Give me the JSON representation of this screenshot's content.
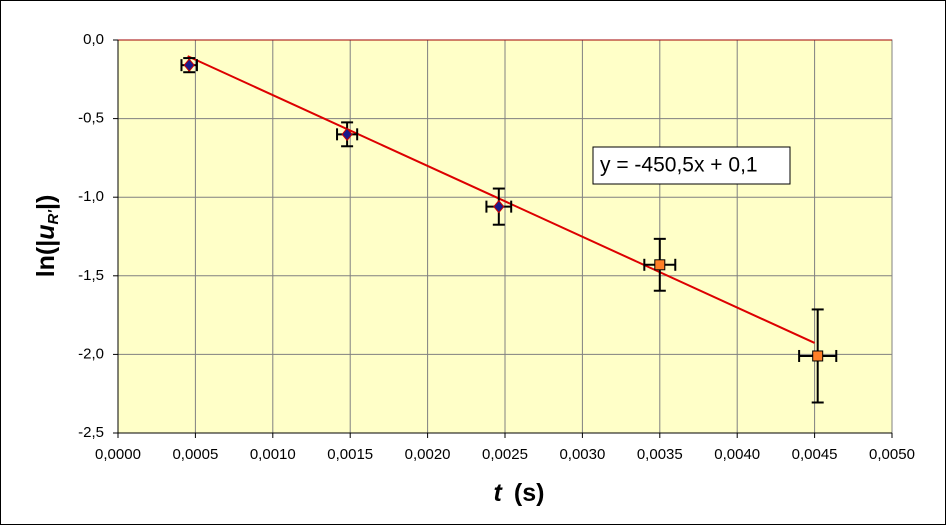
{
  "chart_data": {
    "type": "scatter",
    "xlabel_parts": [
      "t",
      "(s)"
    ],
    "ylabel_parts": [
      "ln(|",
      "u",
      "R'",
      "|)"
    ],
    "xlim": [
      0,
      0.005
    ],
    "ylim": [
      -2.5,
      0
    ],
    "xticks": [
      {
        "value": 0,
        "label": "0,0000"
      },
      {
        "value": 0.0005,
        "label": "0,0005"
      },
      {
        "value": 0.001,
        "label": "0,0010"
      },
      {
        "value": 0.0015,
        "label": "0,0015"
      },
      {
        "value": 0.002,
        "label": "0,0020"
      },
      {
        "value": 0.0025,
        "label": "0,0025"
      },
      {
        "value": 0.003,
        "label": "0,0030"
      },
      {
        "value": 0.0035,
        "label": "0,0035"
      },
      {
        "value": 0.004,
        "label": "0,0040"
      },
      {
        "value": 0.0045,
        "label": "0,0045"
      },
      {
        "value": 0.005,
        "label": "0,0050"
      }
    ],
    "yticks": [
      {
        "value": 0,
        "label": "0,0"
      },
      {
        "value": -0.5,
        "label": "-0,5"
      },
      {
        "value": -1,
        "label": "-1,0"
      },
      {
        "value": -1.5,
        "label": "-1,5"
      },
      {
        "value": -2,
        "label": "-2,0"
      },
      {
        "value": -2.5,
        "label": "-2,5"
      }
    ],
    "grid": true,
    "series": [
      {
        "color": "#1a1a8c",
        "marker": "diamond",
        "x": [
          0.00046,
          0.00148,
          0.00246
        ],
        "values": [
          -0.16,
          -0.6,
          -1.06
        ],
        "yerr": [
          0.045,
          0.076,
          0.115
        ],
        "xerr": [
          5e-05,
          6.5e-05,
          8e-05
        ]
      },
      {
        "color": "#ff7f27",
        "marker": "square",
        "x": [
          0.0035,
          0.00452
        ],
        "values": [
          -1.43,
          -2.01
        ],
        "yerr": [
          0.165,
          0.296
        ],
        "xerr": [
          0.0001,
          0.00012
        ]
      }
    ],
    "trendline": {
      "label": "y = -450,5x + 0,1",
      "color": "#dd0000",
      "slope": -450.5,
      "intercept": 0.1,
      "x": [
        0.00045,
        0.0045
      ]
    }
  }
}
